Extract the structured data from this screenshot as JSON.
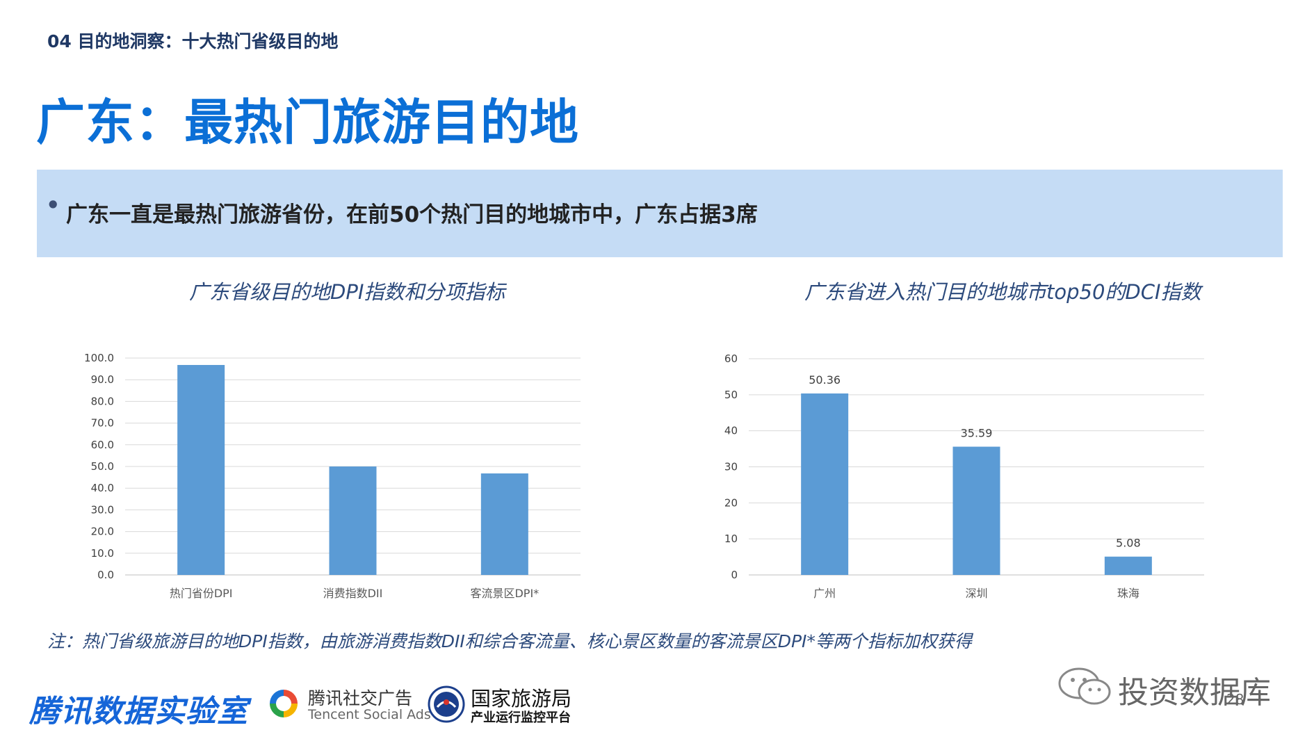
{
  "header": {
    "section_label": "04 目的地洞察：十大热门省级目的地",
    "title": "广东：最热门旅游目的地"
  },
  "highlight": {
    "bullet": "•",
    "text": "广东一直是最热门旅游省份，在前50个热门目的地城市中，广东占据3席"
  },
  "chart_data": [
    {
      "type": "bar",
      "title": "广东省级目的地DPI指数和分项指标",
      "categories": [
        "热门省份DPI",
        "消费指数DII",
        "客流景区DPI*"
      ],
      "values": [
        96.8,
        50.0,
        46.8
      ],
      "ylim": [
        0,
        100
      ],
      "yticks": [
        "0.0",
        "10.0",
        "20.0",
        "30.0",
        "40.0",
        "50.0",
        "60.0",
        "70.0",
        "80.0",
        "90.0",
        "100.0"
      ],
      "grid": true,
      "bar_color": "#5b9bd5"
    },
    {
      "type": "bar",
      "title": "广东省进入热门目的地城市top50的DCI指数",
      "categories": [
        "广州",
        "深圳",
        "珠海"
      ],
      "values": [
        50.36,
        35.59,
        5.08
      ],
      "data_labels": [
        "50.36",
        "35.59",
        "5.08"
      ],
      "ylim": [
        0,
        60
      ],
      "yticks": [
        "0",
        "10",
        "20",
        "30",
        "40",
        "50",
        "60"
      ],
      "grid": true,
      "bar_color": "#5b9bd5"
    }
  ],
  "footnote": "注：热门省级旅游目的地DPI指数，由旅游消费指数DII和综合客流量、核心景区数量的客流景区DPI*等两个指标加权获得",
  "footer": {
    "logo_tencent_lab": "腾讯数据实验室",
    "logo_social_name": "腾讯社交广告",
    "logo_social_sub": "Tencent Social Ads",
    "logo_cnta_name": "国家旅游局",
    "logo_cnta_sub": "产业运行监控平台",
    "watermark": "投资数据库",
    "page_number": "28"
  }
}
